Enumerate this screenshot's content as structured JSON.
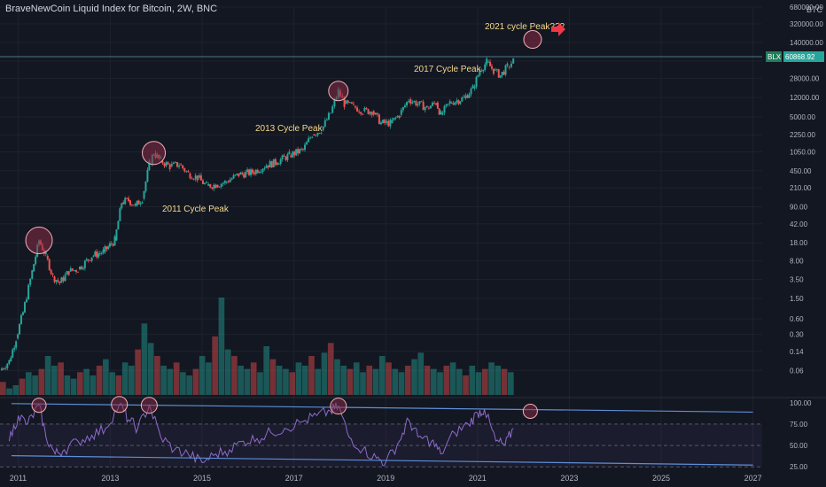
{
  "header": {
    "title": "BraveNewCoin Liquid Index for Bitcoin, 2W, BNC",
    "currency": "BTC"
  },
  "price_badge": {
    "symbol": "BLX",
    "value": "60868.92"
  },
  "annotations": [
    {
      "text": "2011 Cycle Peak"
    },
    {
      "text": "2013 Cycle Peak"
    },
    {
      "text": "2017 Cycle Peak"
    },
    {
      "text": "2021 cycle Peak???"
    }
  ],
  "colors": {
    "up": "#26a69a",
    "down": "#ef5350",
    "circle_fill": "#8a2c45",
    "circle_stroke": "#f5b0b8",
    "rsi": "#8e6bc9",
    "trend": "#5d8fd6",
    "label": "#f5d98b",
    "arrow": "#f23645"
  },
  "chart_data": [
    {
      "type": "candlestick",
      "title": "BraveNewCoin Liquid Index for Bitcoin, 2W, BNC",
      "yscale": "log",
      "ylim": [
        0.02,
        680000
      ],
      "xlim": [
        2010.6,
        2027.2
      ],
      "y_ticks": [
        "680000.00",
        "320000.00",
        "140000.00",
        "60868.92",
        "28000.00",
        "12000.00",
        "5000.00",
        "2250.00",
        "1050.00",
        "450.00",
        "210.00",
        "90.00",
        "42.00",
        "18.00",
        "8.00",
        "3.50",
        "1.50",
        "0.60",
        "0.30",
        "0.14",
        "0.06"
      ],
      "x_ticks": [
        "2011",
        "2013",
        "2015",
        "2017",
        "2019",
        "2021",
        "2023",
        "2025",
        "2027"
      ],
      "series": [
        {
          "name": "BLX",
          "points": [
            [
              2010.6,
              0.06
            ],
            [
              2010.8,
              0.09
            ],
            [
              2010.95,
              0.25
            ],
            [
              2011.1,
              0.8
            ],
            [
              2011.3,
              5
            ],
            [
              2011.45,
              20
            ],
            [
              2011.6,
              10
            ],
            [
              2011.75,
              4
            ],
            [
              2011.9,
              3
            ],
            [
              2012.1,
              5
            ],
            [
              2012.3,
              5.5
            ],
            [
              2012.6,
              10
            ],
            [
              2012.85,
              12
            ],
            [
              2013.1,
              20
            ],
            [
              2013.25,
              110
            ],
            [
              2013.4,
              120
            ],
            [
              2013.55,
              95
            ],
            [
              2013.7,
              130
            ],
            [
              2013.85,
              600
            ],
            [
              2013.95,
              1000
            ],
            [
              2014.1,
              700
            ],
            [
              2014.3,
              550
            ],
            [
              2014.5,
              600
            ],
            [
              2014.7,
              400
            ],
            [
              2014.9,
              330
            ],
            [
              2015.1,
              230
            ],
            [
              2015.3,
              240
            ],
            [
              2015.5,
              270
            ],
            [
              2015.8,
              380
            ],
            [
              2016.1,
              420
            ],
            [
              2016.4,
              580
            ],
            [
              2016.6,
              650
            ],
            [
              2016.9,
              900
            ],
            [
              2017.2,
              1150
            ],
            [
              2017.4,
              2300
            ],
            [
              2017.6,
              2800
            ],
            [
              2017.8,
              6000
            ],
            [
              2017.97,
              16000
            ],
            [
              2018.1,
              9000
            ],
            [
              2018.3,
              8000
            ],
            [
              2018.5,
              6500
            ],
            [
              2018.7,
              6500
            ],
            [
              2018.9,
              3800
            ],
            [
              2019.1,
              3800
            ],
            [
              2019.3,
              5500
            ],
            [
              2019.5,
              11000
            ],
            [
              2019.7,
              9000
            ],
            [
              2019.9,
              7500
            ],
            [
              2020.1,
              9500
            ],
            [
              2020.2,
              5500
            ],
            [
              2020.4,
              9500
            ],
            [
              2020.7,
              11500
            ],
            [
              2020.9,
              18000
            ],
            [
              2021.05,
              40000
            ],
            [
              2021.2,
              58000
            ],
            [
              2021.35,
              40000
            ],
            [
              2021.5,
              32000
            ],
            [
              2021.65,
              47000
            ],
            [
              2021.78,
              60868.92
            ]
          ]
        }
      ]
    },
    {
      "type": "bar",
      "title": "",
      "series": [
        {
          "name": "Volume",
          "values": [
            4,
            2,
            3,
            5,
            7,
            6,
            8,
            12,
            9,
            10,
            6,
            5,
            7,
            8,
            6,
            9,
            11,
            7,
            6,
            10,
            9,
            14,
            22,
            16,
            12,
            9,
            8,
            10,
            7,
            6,
            8,
            12,
            10,
            18,
            30,
            14,
            12,
            9,
            8,
            10,
            7,
            15,
            11,
            9,
            8,
            7,
            10,
            9,
            12,
            8,
            13,
            16,
            11,
            9,
            8,
            10,
            7,
            9,
            8,
            12,
            10,
            8,
            7,
            9,
            11,
            13,
            9,
            8,
            7,
            9,
            10,
            8,
            6,
            9,
            7,
            8,
            10,
            9,
            8,
            7
          ]
        }
      ]
    },
    {
      "type": "line",
      "title": "",
      "y_ticks": [
        "100.00",
        "75.00",
        "50.00",
        "25.00"
      ],
      "ylim": [
        20,
        105
      ],
      "series": [
        {
          "name": "RSI",
          "points": [
            [
              2010.8,
              55
            ],
            [
              2011.0,
              85
            ],
            [
              2011.2,
              75
            ],
            [
              2011.45,
              97
            ],
            [
              2011.6,
              60
            ],
            [
              2011.8,
              40
            ],
            [
              2012.0,
              45
            ],
            [
              2012.3,
              55
            ],
            [
              2012.6,
              62
            ],
            [
              2012.9,
              70
            ],
            [
              2013.2,
              98
            ],
            [
              2013.4,
              80
            ],
            [
              2013.6,
              70
            ],
            [
              2013.85,
              97
            ],
            [
              2014.1,
              60
            ],
            [
              2014.4,
              45
            ],
            [
              2014.7,
              40
            ],
            [
              2015.0,
              30
            ],
            [
              2015.3,
              40
            ],
            [
              2015.6,
              45
            ],
            [
              2015.9,
              55
            ],
            [
              2016.2,
              58
            ],
            [
              2016.5,
              65
            ],
            [
              2016.8,
              70
            ],
            [
              2017.2,
              78
            ],
            [
              2017.5,
              85
            ],
            [
              2017.8,
              90
            ],
            [
              2017.97,
              96
            ],
            [
              2018.2,
              60
            ],
            [
              2018.5,
              45
            ],
            [
              2018.8,
              35
            ],
            [
              2019.0,
              30
            ],
            [
              2019.3,
              55
            ],
            [
              2019.5,
              80
            ],
            [
              2019.7,
              60
            ],
            [
              2020.0,
              55
            ],
            [
              2020.2,
              40
            ],
            [
              2020.5,
              65
            ],
            [
              2020.8,
              75
            ],
            [
              2021.0,
              88
            ],
            [
              2021.15,
              92
            ],
            [
              2021.4,
              55
            ],
            [
              2021.6,
              50
            ],
            [
              2021.78,
              70
            ]
          ]
        }
      ]
    }
  ]
}
